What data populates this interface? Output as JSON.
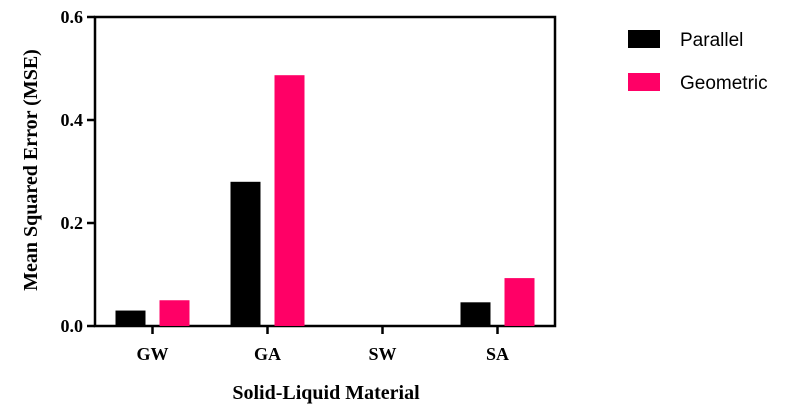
{
  "chart_data": {
    "type": "bar",
    "title": "",
    "xlabel": "Solid-Liquid Material",
    "ylabel": "Mean Squared Error (MSE)",
    "categories": [
      "GW",
      "GA",
      "SW",
      "SA"
    ],
    "ylim": [
      0,
      0.6
    ],
    "yticks": [
      "0.0",
      "0.2",
      "0.4",
      "0.6"
    ],
    "series": [
      {
        "name": "Parallel",
        "color": "#000000",
        "values": [
          0.03,
          0.28,
          0.0,
          0.046
        ]
      },
      {
        "name": "Geometric",
        "color": "#ff0066",
        "values": [
          0.05,
          0.487,
          0.0,
          0.093
        ]
      }
    ],
    "legend_position": "top-right",
    "grid": false
  }
}
